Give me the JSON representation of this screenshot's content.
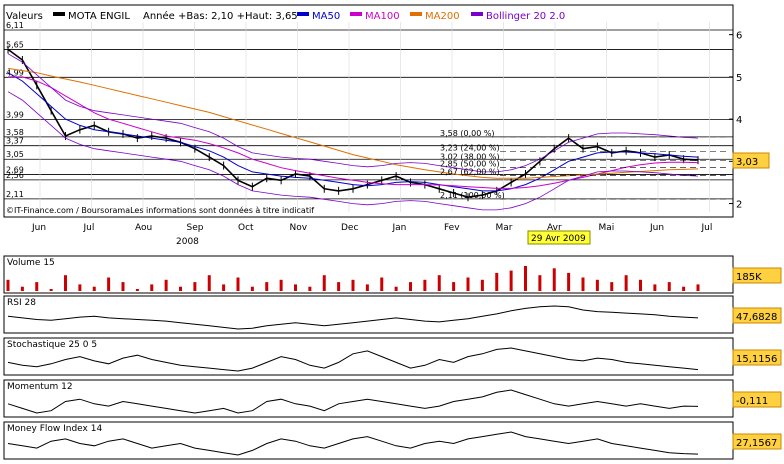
{
  "header": {
    "valeurs_label": "Valeurs",
    "name": "MOTA ENGIL",
    "range_text": "Année +Bas: 2,10 +Haut: 3,65",
    "legend": [
      {
        "label": "MA50",
        "color": "#0000cc"
      },
      {
        "label": "MA100",
        "color": "#cc00cc"
      },
      {
        "label": "MA200",
        "color": "#e07000"
      },
      {
        "label": "Bollinger 20 2.0",
        "color": "#7a00cc"
      }
    ]
  },
  "price_panel": {
    "left_labels": [
      "6,11",
      "5,65",
      "4,99",
      "3,99",
      "3,58",
      "3,37",
      "3,05",
      "2,69",
      "2,56",
      "2,11"
    ],
    "right_axis": [
      "6",
      "5",
      "4",
      "3",
      "2"
    ],
    "fib_labels": [
      "3,58 (0,00 %)",
      "3,23 (24,00 %)",
      "3,02 (38,00 %)",
      "2,85 (50,00 %)",
      "2,67 (62,00 %)",
      "2,11 (100,00 %)"
    ],
    "last_value": "3,03",
    "source": "IT-Finance.com / BoursoramaLes informations sont données à titre indicatif",
    "x_labels": [
      "Jun",
      "Jul",
      "Aou",
      "Sep",
      "Oct",
      "Nov",
      "Dec",
      "Jan",
      "Fev",
      "Mar",
      "Avr",
      "Mai",
      "Jun",
      "Jul"
    ],
    "year_label": "2008",
    "date_marker": "29 Avr 2009"
  },
  "indicators": [
    {
      "label": "Volume 15",
      "value": "185K"
    },
    {
      "label": "RSI 28",
      "value": "47,6828"
    },
    {
      "label": "Stochastique 25 0 5",
      "value": "15,1156"
    },
    {
      "label": "Momentum 12",
      "value": "-0,111"
    },
    {
      "label": "Money Flow Index 14",
      "value": "27,1567"
    }
  ],
  "chart_data": {
    "type": "line",
    "title": "MOTA ENGIL",
    "ylim": [
      1.8,
      6.3
    ],
    "series": [
      {
        "name": "MOTA ENGIL",
        "values": [
          5.65,
          5.4,
          4.8,
          4.2,
          3.6,
          3.75,
          3.85,
          3.7,
          3.65,
          3.55,
          3.6,
          3.55,
          3.45,
          3.3,
          3.1,
          2.9,
          2.55,
          2.4,
          2.6,
          2.55,
          2.7,
          2.65,
          2.35,
          2.3,
          2.35,
          2.45,
          2.55,
          2.65,
          2.5,
          2.45,
          2.35,
          2.25,
          2.15,
          2.2,
          2.3,
          2.5,
          2.7,
          3.0,
          3.3,
          3.55,
          3.3,
          3.35,
          3.2,
          3.25,
          3.2,
          3.1,
          3.15,
          3.05,
          3.03
        ]
      },
      {
        "name": "MA50",
        "values": [
          5.1,
          4.9,
          4.6,
          4.3,
          4.0,
          3.85,
          3.75,
          3.7,
          3.65,
          3.6,
          3.55,
          3.5,
          3.45,
          3.35,
          3.25,
          3.1,
          2.9,
          2.75,
          2.7,
          2.65,
          2.62,
          2.6,
          2.55,
          2.5,
          2.45,
          2.42,
          2.45,
          2.5,
          2.52,
          2.5,
          2.45,
          2.4,
          2.35,
          2.3,
          2.3,
          2.35,
          2.45,
          2.6,
          2.8,
          3.0,
          3.1,
          3.2,
          3.22,
          3.22,
          3.2,
          3.18,
          3.15,
          3.12,
          3.1
        ]
      },
      {
        "name": "MA100",
        "values": [
          5.0,
          5.0,
          4.9,
          4.75,
          4.55,
          4.35,
          4.15,
          4.0,
          3.9,
          3.8,
          3.7,
          3.6,
          3.55,
          3.5,
          3.42,
          3.32,
          3.2,
          3.05,
          2.95,
          2.85,
          2.78,
          2.72,
          2.66,
          2.6,
          2.55,
          2.5,
          2.47,
          2.45,
          2.45,
          2.45,
          2.44,
          2.42,
          2.4,
          2.38,
          2.36,
          2.36,
          2.38,
          2.42,
          2.48,
          2.55,
          2.62,
          2.7,
          2.78,
          2.86,
          2.92,
          2.96,
          2.98,
          2.98,
          2.97
        ]
      },
      {
        "name": "MA200",
        "values": [
          5.2,
          5.15,
          5.1,
          5.02,
          4.95,
          4.88,
          4.8,
          4.72,
          4.64,
          4.56,
          4.48,
          4.4,
          4.32,
          4.24,
          4.16,
          4.06,
          3.96,
          3.86,
          3.76,
          3.66,
          3.56,
          3.46,
          3.36,
          3.26,
          3.16,
          3.08,
          3.0,
          2.92,
          2.86,
          2.8,
          2.75,
          2.7,
          2.66,
          2.62,
          2.6,
          2.6,
          2.6,
          2.62,
          2.64,
          2.66,
          2.68,
          2.7,
          2.72,
          2.74,
          2.76,
          2.78,
          2.8,
          2.81,
          2.82
        ]
      }
    ],
    "indicator_series": {
      "volume": [
        60,
        45,
        55,
        40,
        70,
        50,
        45,
        65,
        55,
        40,
        50,
        60,
        45,
        55,
        70,
        50,
        65,
        45,
        55,
        60,
        50,
        45,
        70,
        55,
        60,
        50,
        65,
        45,
        55,
        60,
        70,
        55,
        65,
        60,
        75,
        80,
        90,
        70,
        85,
        75,
        65,
        60,
        55,
        70,
        60,
        50,
        55,
        45,
        50
      ],
      "rsi": [
        50,
        48,
        46,
        45,
        47,
        49,
        50,
        48,
        47,
        46,
        45,
        44,
        42,
        40,
        38,
        36,
        34,
        35,
        38,
        40,
        42,
        40,
        38,
        40,
        42,
        44,
        46,
        48,
        46,
        44,
        43,
        45,
        47,
        50,
        53,
        57,
        60,
        62,
        63,
        62,
        58,
        56,
        55,
        54,
        53,
        52,
        50,
        49,
        48
      ],
      "stochastic": [
        40,
        30,
        25,
        35,
        50,
        60,
        45,
        35,
        55,
        65,
        50,
        40,
        30,
        25,
        20,
        15,
        10,
        20,
        40,
        60,
        50,
        30,
        20,
        40,
        70,
        80,
        60,
        40,
        20,
        30,
        50,
        40,
        60,
        70,
        85,
        90,
        80,
        70,
        60,
        50,
        45,
        55,
        50,
        40,
        35,
        30,
        25,
        20,
        15
      ],
      "momentum": [
        0.0,
        -0.2,
        -0.4,
        -0.3,
        0.1,
        0.2,
        0.0,
        -0.1,
        0.1,
        0.0,
        -0.1,
        -0.2,
        -0.3,
        -0.4,
        -0.3,
        -0.2,
        -0.4,
        -0.3,
        0.1,
        0.2,
        0.0,
        -0.1,
        -0.3,
        0.0,
        0.1,
        0.2,
        0.1,
        0.0,
        -0.1,
        -0.2,
        -0.1,
        0.1,
        0.2,
        0.3,
        0.5,
        0.6,
        0.4,
        0.2,
        0.0,
        -0.1,
        0.0,
        0.1,
        0.0,
        -0.1,
        0.0,
        -0.1,
        -0.2,
        -0.1,
        -0.111
      ],
      "mfi": [
        50,
        45,
        40,
        55,
        60,
        50,
        45,
        55,
        60,
        50,
        40,
        45,
        50,
        40,
        35,
        30,
        25,
        35,
        50,
        60,
        55,
        45,
        40,
        50,
        60,
        65,
        55,
        45,
        40,
        50,
        55,
        50,
        60,
        65,
        70,
        75,
        65,
        60,
        55,
        50,
        55,
        60,
        50,
        45,
        40,
        35,
        30,
        28,
        27
      ]
    }
  }
}
